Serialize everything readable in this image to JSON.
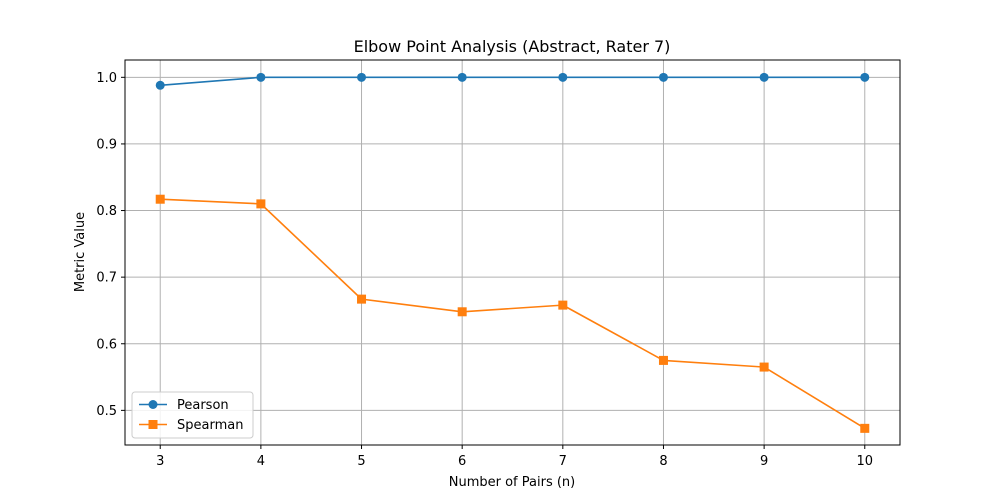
{
  "chart_data": {
    "type": "line",
    "title": "Elbow Point Analysis (Abstract, Rater 7)",
    "xlabel": "Number of Pairs (n)",
    "ylabel": "Metric Value",
    "x": [
      3,
      4,
      5,
      6,
      7,
      8,
      9,
      10
    ],
    "x_tick_labels": [
      "3",
      "4",
      "5",
      "6",
      "7",
      "8",
      "9",
      "10"
    ],
    "y_ticks": [
      0.5,
      0.6,
      0.7,
      0.8,
      0.9,
      1.0
    ],
    "y_tick_labels": [
      "0.5",
      "0.6",
      "0.7",
      "0.8",
      "0.9",
      "1.0"
    ],
    "xlim": [
      2.65,
      10.35
    ],
    "ylim": [
      0.448,
      1.026
    ],
    "grid": true,
    "legend_position": "lower-left",
    "series": [
      {
        "name": "Pearson",
        "color": "#1f77b4",
        "marker": "circle",
        "values": [
          0.988,
          1.0,
          1.0,
          1.0,
          1.0,
          1.0,
          1.0,
          1.0
        ]
      },
      {
        "name": "Spearman",
        "color": "#ff7f0e",
        "marker": "square",
        "values": [
          0.817,
          0.81,
          0.667,
          0.648,
          0.658,
          0.575,
          0.565,
          0.473
        ]
      }
    ]
  }
}
